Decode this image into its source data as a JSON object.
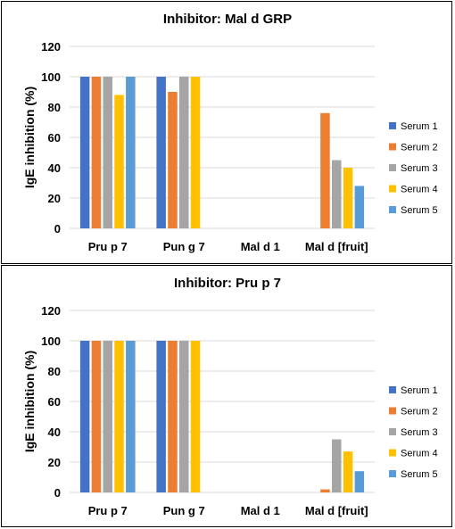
{
  "colors": {
    "serum1": "#4472C4",
    "serum2": "#ED7D31",
    "serum3": "#A5A5A5",
    "serum4": "#FFC000",
    "serum5": "#5B9BD5",
    "grid": "#d9d9d9"
  },
  "chart_data": [
    {
      "type": "bar",
      "title": "Inhibitor: Mal d GRP",
      "ylabel": "IgE inhibition (%)",
      "xlabel": "",
      "ylim": [
        0,
        120
      ],
      "yticks": [
        0,
        20,
        40,
        60,
        80,
        100,
        120
      ],
      "grid": true,
      "legend_position": "right",
      "categories": [
        "Pru p 7",
        "Pun g 7",
        "Mal d 1",
        "Mal d [fruit]"
      ],
      "series": [
        {
          "name": "Serum 1",
          "values": [
            100,
            100,
            0,
            0
          ]
        },
        {
          "name": "Serum 2",
          "values": [
            100,
            90,
            0,
            76
          ]
        },
        {
          "name": "Serum 3",
          "values": [
            100,
            100,
            0,
            45
          ]
        },
        {
          "name": "Serum 4",
          "values": [
            88,
            100,
            0,
            40
          ]
        },
        {
          "name": "Serum 5",
          "values": [
            100,
            0,
            0,
            28
          ]
        }
      ]
    },
    {
      "type": "bar",
      "title": "Inhibitor: Pru p 7",
      "ylabel": "IgE inhibition (%)",
      "xlabel": "",
      "ylim": [
        0,
        120
      ],
      "yticks": [
        0,
        20,
        40,
        60,
        80,
        100,
        120
      ],
      "grid": true,
      "legend_position": "right",
      "categories": [
        "Pru p 7",
        "Pun g 7",
        "Mal d 1",
        "Mal d [fruit]"
      ],
      "series": [
        {
          "name": "Serum 1",
          "values": [
            100,
            100,
            0,
            0
          ]
        },
        {
          "name": "Serum 2",
          "values": [
            100,
            100,
            0,
            2
          ]
        },
        {
          "name": "Serum 3",
          "values": [
            100,
            100,
            0,
            35
          ]
        },
        {
          "name": "Serum 4",
          "values": [
            100,
            100,
            0,
            27
          ]
        },
        {
          "name": "Serum 5",
          "values": [
            100,
            0,
            0,
            14
          ]
        }
      ]
    }
  ]
}
